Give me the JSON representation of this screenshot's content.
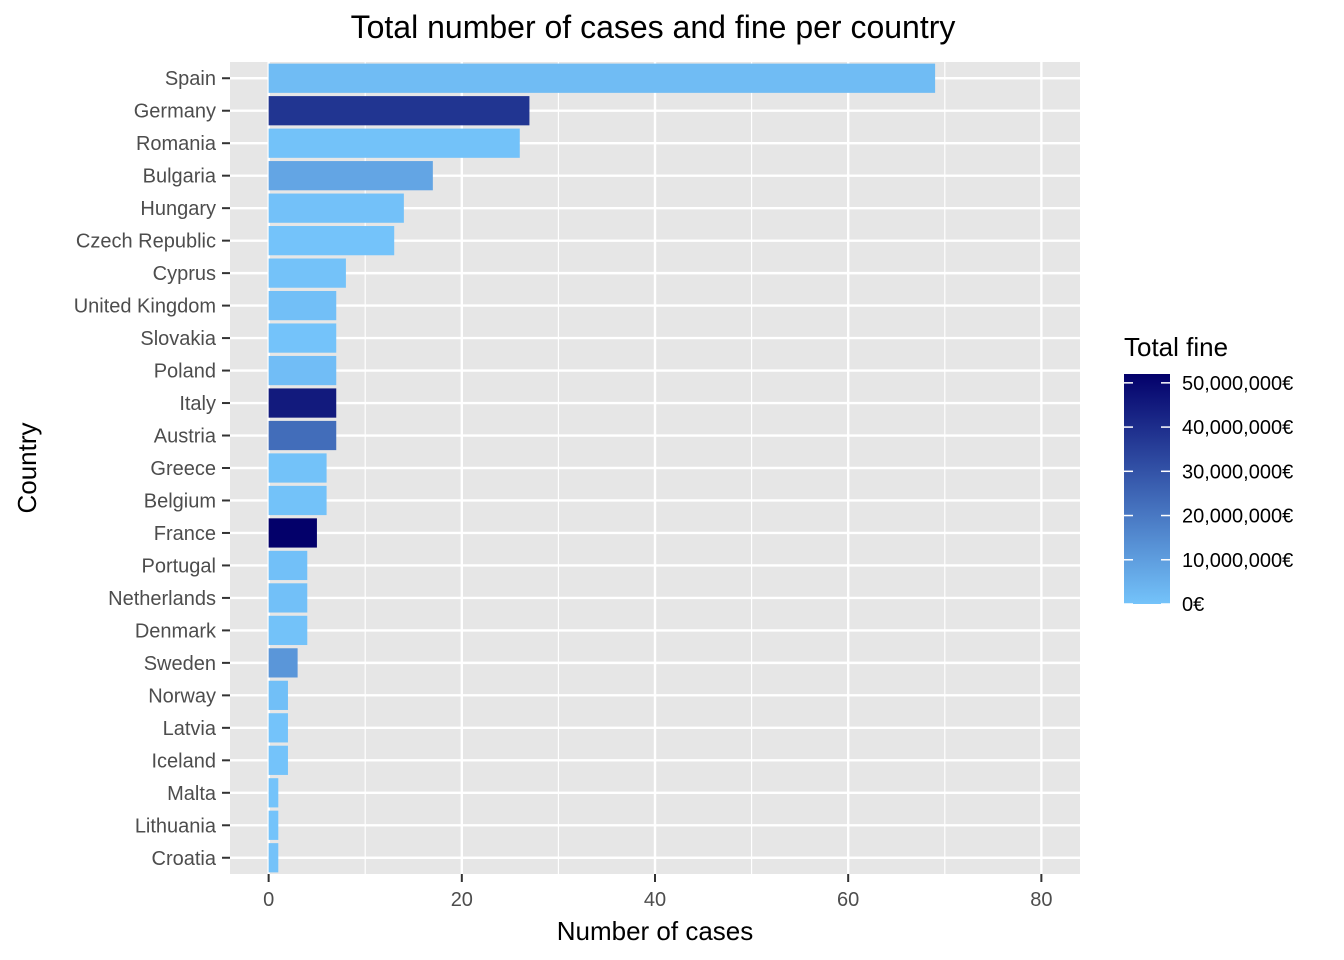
{
  "chart_data": {
    "type": "bar",
    "orientation": "horizontal",
    "title": "Total number of cases and fine per country",
    "xlabel": "Number of cases",
    "ylabel": "Country",
    "xlim": [
      -4,
      84
    ],
    "x_ticks": [
      0,
      20,
      40,
      60,
      80
    ],
    "grid": true,
    "categories": [
      "Spain",
      "Germany",
      "Romania",
      "Bulgaria",
      "Hungary",
      "Czech Republic",
      "Cyprus",
      "United Kingdom",
      "Slovakia",
      "Poland",
      "Italy",
      "Austria",
      "Greece",
      "Belgium",
      "France",
      "Portugal",
      "Netherlands",
      "Denmark",
      "Sweden",
      "Norway",
      "Latvia",
      "Iceland",
      "Malta",
      "Lithuania",
      "Croatia"
    ],
    "values": [
      69,
      27,
      26,
      17,
      14,
      13,
      8,
      7,
      7,
      7,
      7,
      7,
      6,
      6,
      5,
      4,
      4,
      4,
      3,
      2,
      2,
      2,
      1,
      1,
      1
    ],
    "fill_values": [
      2000000,
      38000000,
      400000,
      8000000,
      500000,
      100000,
      200000,
      1000000,
      100000,
      1500000,
      45000000,
      23000000,
      300000,
      400000,
      52000000,
      900000,
      700000,
      300000,
      12000000,
      1200000,
      100000,
      50000,
      50000,
      100000,
      200000
    ],
    "legend": {
      "title": "Total fine",
      "placement": "right",
      "labels": [
        "50,000,000€",
        "40,000,000€",
        "30,000,000€",
        "20,000,000€",
        "10,000,000€",
        "0€"
      ],
      "breaks": [
        50000000,
        40000000,
        30000000,
        20000000,
        10000000,
        0
      ],
      "range": [
        0,
        52000000
      ],
      "color_low": "#74c3fa",
      "color_high": "#03006a"
    },
    "colors": {
      "panel_bg": "#e6e6e6",
      "grid": "#ffffff"
    }
  }
}
